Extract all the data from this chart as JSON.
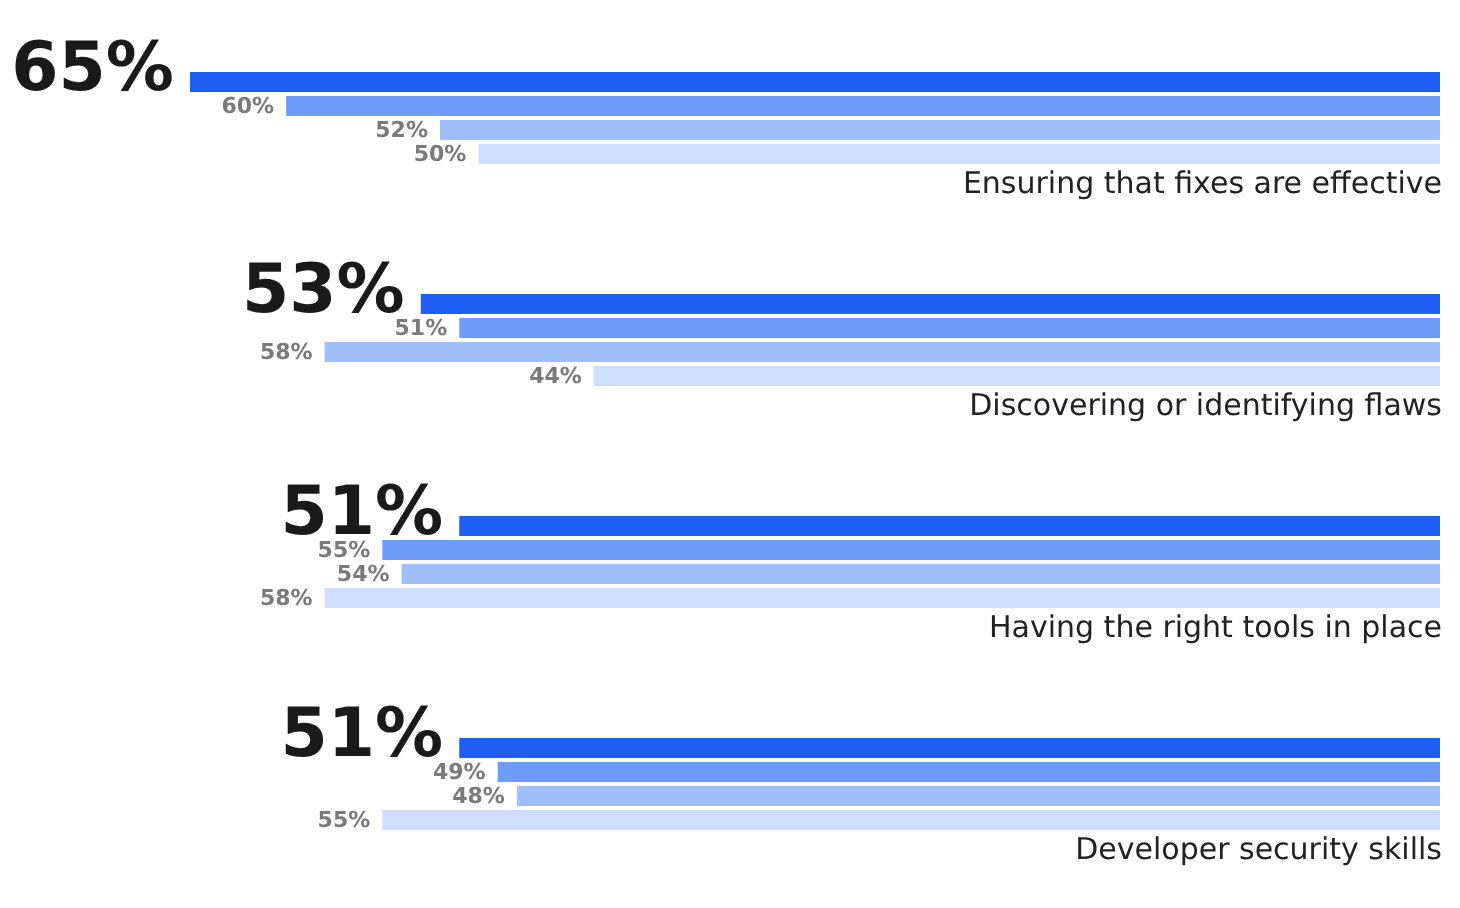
{
  "chart_data": {
    "type": "bar",
    "orientation": "horizontal",
    "categories": [
      "Ensuring that fixes are effective",
      "Discovering or identifying flaws",
      "Having the right tools in place",
      "Developer security skills"
    ],
    "series": [
      {
        "color": "#1f5ff5",
        "values": [
          65,
          53,
          51,
          51
        ],
        "value_labels": [
          "65%",
          "53%",
          "51%",
          "51%"
        ]
      },
      {
        "color": "#6f9cf8",
        "values": [
          60,
          51,
          55,
          49
        ],
        "value_labels": [
          "60%",
          "51%",
          "55%",
          "49%"
        ]
      },
      {
        "color": "#a0befa",
        "values": [
          52,
          58,
          54,
          48
        ],
        "value_labels": [
          "52%",
          "58%",
          "54%",
          "48%"
        ]
      },
      {
        "color": "#cfdefd",
        "values": [
          50,
          44,
          58,
          55
        ],
        "value_labels": [
          "50%",
          "44%",
          "58%",
          "55%"
        ]
      }
    ],
    "grid": false,
    "legend": false
  }
}
